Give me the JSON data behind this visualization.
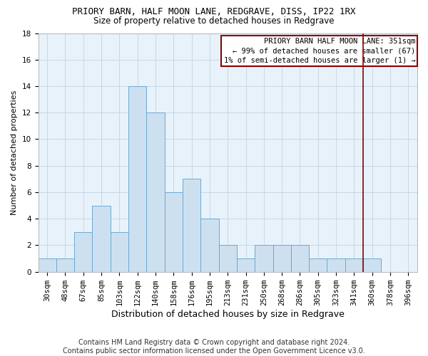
{
  "title": "PRIORY BARN, HALF MOON LANE, REDGRAVE, DISS, IP22 1RX",
  "subtitle": "Size of property relative to detached houses in Redgrave",
  "xlabel": "Distribution of detached houses by size in Redgrave",
  "ylabel": "Number of detached properties",
  "bar_labels": [
    "30sqm",
    "48sqm",
    "67sqm",
    "85sqm",
    "103sqm",
    "122sqm",
    "140sqm",
    "158sqm",
    "176sqm",
    "195sqm",
    "213sqm",
    "231sqm",
    "250sqm",
    "268sqm",
    "286sqm",
    "305sqm",
    "323sqm",
    "341sqm",
    "360sqm",
    "378sqm",
    "396sqm"
  ],
  "bar_values": [
    1,
    1,
    3,
    5,
    3,
    14,
    12,
    6,
    7,
    4,
    2,
    1,
    2,
    2,
    2,
    1,
    1,
    1,
    1,
    0,
    0
  ],
  "bar_color": "#cde0f0",
  "bar_edge_color": "#6aaad4",
  "ylim": [
    0,
    18
  ],
  "yticks": [
    0,
    2,
    4,
    6,
    8,
    10,
    12,
    14,
    16,
    18
  ],
  "red_line_x": 17.5,
  "red_line_label_line1": "PRIORY BARN HALF MOON LANE: 351sqm",
  "red_line_label_line2": "← 99% of detached houses are smaller (67)",
  "red_line_label_line3": "1% of semi-detached houses are larger (1) →",
  "footer_line1": "Contains HM Land Registry data © Crown copyright and database right 2024.",
  "footer_line2": "Contains public sector information licensed under the Open Government Licence v3.0.",
  "background_color": "#e8f2fa",
  "plot_background": "#ffffff",
  "grid_color": "#c8d8e8",
  "title_fontsize": 9,
  "subtitle_fontsize": 8.5,
  "xlabel_fontsize": 9,
  "ylabel_fontsize": 8,
  "tick_fontsize": 7.5,
  "footer_fontsize": 7,
  "annot_fontsize": 7.5
}
